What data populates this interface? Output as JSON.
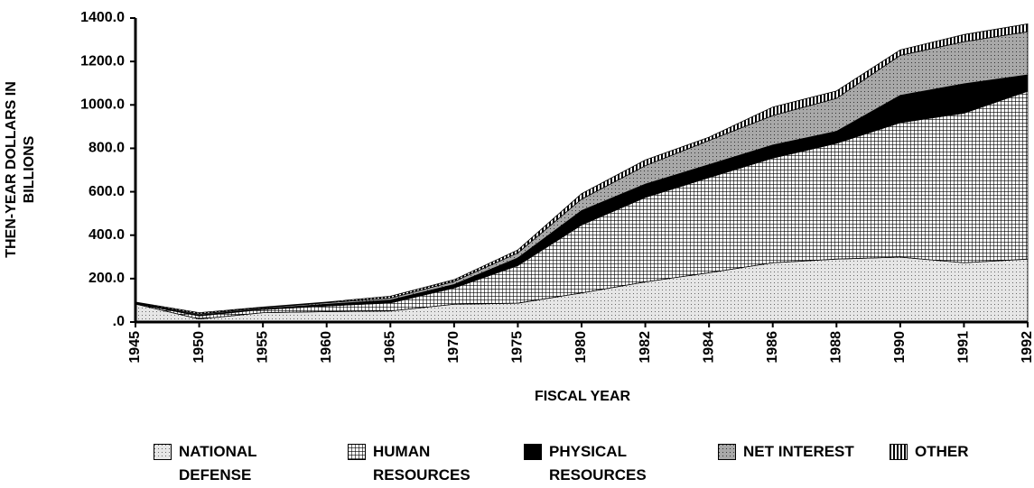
{
  "chart_data": {
    "type": "stacked_area",
    "y_label": "THEN-YEAR DOLLARS IN BILLIONS",
    "x_label": "FISCAL YEAR",
    "categories": [
      "1945",
      "1950",
      "1955",
      "1960",
      "1965",
      "1970",
      "1975",
      "1980",
      "1982",
      "1984",
      "1986",
      "1988",
      "1990",
      "1991",
      "1992"
    ],
    "series": [
      {
        "name": "NATIONAL DEFENSE",
        "color": "#e6e6e6",
        "pattern": "dots",
        "values": [
          83,
          14,
          43,
          48,
          51,
          82,
          87,
          134,
          185,
          227,
          273,
          290,
          299,
          273,
          290
        ]
      },
      {
        "name": "HUMAN RESOURCES",
        "color": "#9a9a9a",
        "pattern": "grid",
        "values": [
          2,
          14,
          15,
          26,
          37,
          75,
          173,
          313,
          389,
          438,
          482,
          533,
          619,
          689,
          773
        ]
      },
      {
        "name": "PHYSICAL RESOURCES",
        "color": "#000000",
        "pattern": "solid",
        "values": [
          1,
          4,
          3,
          8,
          13,
          16,
          35,
          66,
          61,
          60,
          60,
          55,
          126,
          135,
          75
        ]
      },
      {
        "name": "NET INTEREST",
        "color": "#a8a8a8",
        "pattern": "dots",
        "values": [
          3,
          5,
          5,
          7,
          9,
          14,
          23,
          53,
          85,
          111,
          136,
          152,
          184,
          194,
          199
        ]
      },
      {
        "name": "OTHER",
        "color": "#ffffff",
        "pattern": "vlines",
        "values": [
          3,
          6,
          3,
          3,
          9,
          8,
          14,
          25,
          26,
          15,
          39,
          34,
          25,
          33,
          36
        ]
      }
    ],
    "ylim": [
      0,
      1400
    ],
    "yticks": [
      {
        "value": 0,
        "label": ".0"
      },
      {
        "value": 200,
        "label": "200.0"
      },
      {
        "value": 400,
        "label": "400.0"
      },
      {
        "value": 600,
        "label": "600.0"
      },
      {
        "value": 800,
        "label": "800.0"
      },
      {
        "value": 1000,
        "label": "1000.0"
      },
      {
        "value": 1200,
        "label": "1200.0"
      },
      {
        "value": 1400,
        "label": "1400.0"
      }
    ]
  }
}
